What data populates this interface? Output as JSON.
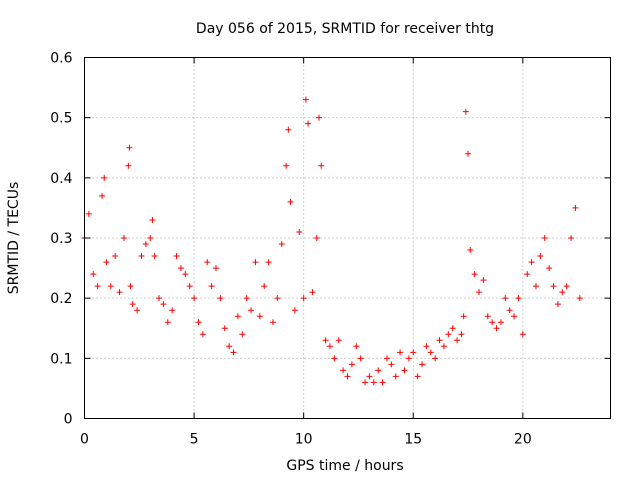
{
  "chart_data": {
    "type": "scatter",
    "title": "Day 056 of 2015, SRMTID for receiver thtg",
    "xlabel": "GPS time / hours",
    "ylabel": "SRMTID / TECUs",
    "xlim": [
      0,
      24
    ],
    "ylim": [
      0,
      0.6
    ],
    "x_ticks": [
      0,
      5,
      10,
      15,
      20
    ],
    "x_tick_labels": [
      "0",
      "5",
      "10",
      "15",
      "20"
    ],
    "y_ticks": [
      0,
      0.1,
      0.2,
      0.3,
      0.4,
      0.5,
      0.6
    ],
    "y_tick_labels": [
      "0",
      "0.1",
      "0.2",
      "0.3",
      "0.4",
      "0.5",
      "0.6"
    ],
    "grid": true,
    "marker": "+",
    "series": [
      {
        "name": "SRMTID",
        "color": "#ff0000",
        "x": [
          0.0,
          0.2,
          0.4,
          0.6,
          0.8,
          0.9,
          1.0,
          1.2,
          1.4,
          1.6,
          1.8,
          2.0,
          2.05,
          2.1,
          2.2,
          2.4,
          2.6,
          2.8,
          3.0,
          3.1,
          3.2,
          3.4,
          3.6,
          3.8,
          4.0,
          4.2,
          4.4,
          4.6,
          4.8,
          5.0,
          5.2,
          5.4,
          5.6,
          5.8,
          6.0,
          6.2,
          6.4,
          6.6,
          6.8,
          7.0,
          7.2,
          7.4,
          7.6,
          7.8,
          8.0,
          8.2,
          8.4,
          8.6,
          8.8,
          9.0,
          9.2,
          9.3,
          9.4,
          9.6,
          9.8,
          10.0,
          10.1,
          10.2,
          10.4,
          10.6,
          10.7,
          10.8,
          11.0,
          11.2,
          11.4,
          11.6,
          11.8,
          12.0,
          12.2,
          12.4,
          12.6,
          12.8,
          13.0,
          13.2,
          13.4,
          13.6,
          13.8,
          14.0,
          14.2,
          14.4,
          14.6,
          14.8,
          15.0,
          15.2,
          15.4,
          15.6,
          15.8,
          16.0,
          16.2,
          16.4,
          16.6,
          16.8,
          17.0,
          17.2,
          17.3,
          17.4,
          17.5,
          17.6,
          17.8,
          18.0,
          18.2,
          18.4,
          18.6,
          18.8,
          19.0,
          19.2,
          19.4,
          19.6,
          19.8,
          20.0,
          20.2,
          20.4,
          20.6,
          20.8,
          21.0,
          21.2,
          21.4,
          21.6,
          21.8,
          22.0,
          22.2,
          22.4,
          22.6
        ],
        "y": [
          0.3,
          0.34,
          0.24,
          0.22,
          0.37,
          0.4,
          0.26,
          0.22,
          0.27,
          0.21,
          0.3,
          0.42,
          0.45,
          0.22,
          0.19,
          0.18,
          0.27,
          0.29,
          0.3,
          0.33,
          0.27,
          0.2,
          0.19,
          0.16,
          0.18,
          0.27,
          0.25,
          0.24,
          0.22,
          0.2,
          0.16,
          0.14,
          0.26,
          0.22,
          0.25,
          0.2,
          0.15,
          0.12,
          0.11,
          0.17,
          0.14,
          0.2,
          0.18,
          0.26,
          0.17,
          0.22,
          0.26,
          0.16,
          0.2,
          0.29,
          0.42,
          0.48,
          0.36,
          0.18,
          0.31,
          0.2,
          0.53,
          0.49,
          0.21,
          0.3,
          0.5,
          0.42,
          0.13,
          0.12,
          0.1,
          0.13,
          0.08,
          0.07,
          0.09,
          0.12,
          0.1,
          0.06,
          0.07,
          0.06,
          0.08,
          0.06,
          0.1,
          0.09,
          0.07,
          0.11,
          0.08,
          0.1,
          0.11,
          0.07,
          0.09,
          0.12,
          0.11,
          0.1,
          0.13,
          0.12,
          0.14,
          0.15,
          0.13,
          0.14,
          0.17,
          0.51,
          0.44,
          0.28,
          0.24,
          0.21,
          0.23,
          0.17,
          0.16,
          0.15,
          0.16,
          0.2,
          0.18,
          0.17,
          0.2,
          0.14,
          0.24,
          0.26,
          0.22,
          0.27,
          0.3,
          0.25,
          0.22,
          0.19,
          0.21,
          0.22,
          0.3,
          0.35,
          0.2
        ]
      }
    ]
  }
}
